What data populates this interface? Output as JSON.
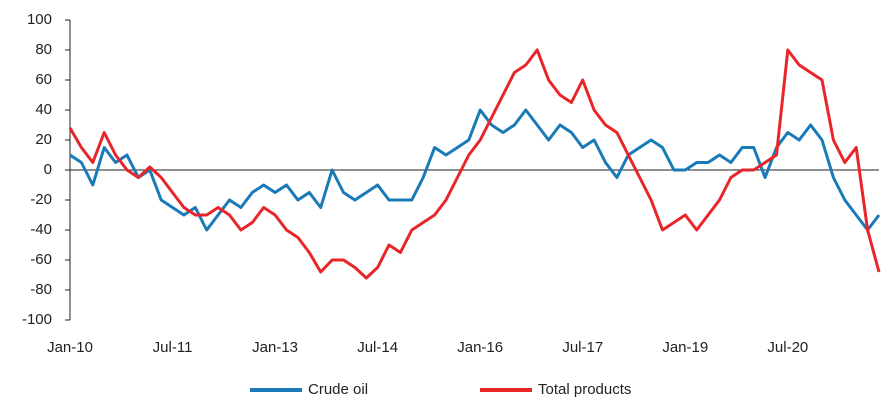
{
  "chart_data": {
    "type": "line",
    "categories": [
      "Jan-10",
      null,
      null,
      null,
      null,
      null,
      null,
      null,
      null,
      "Jul-11",
      null,
      null,
      null,
      null,
      null,
      null,
      null,
      null,
      "Jan-13",
      null,
      null,
      null,
      null,
      null,
      null,
      null,
      null,
      "Jul-14",
      null,
      null,
      null,
      null,
      null,
      null,
      null,
      null,
      "Jan-16",
      null,
      null,
      null,
      null,
      null,
      null,
      null,
      null,
      "Jul-17",
      null,
      null,
      null,
      null,
      null,
      null,
      null,
      null,
      "Jan-19",
      null,
      null,
      null,
      null,
      null,
      null,
      null,
      null,
      "Jul-20",
      null,
      null,
      null,
      null,
      null,
      null,
      null,
      null
    ],
    "series": [
      {
        "name": "Crude oil",
        "color": "#1a7ab8",
        "values": [
          10,
          5,
          -10,
          15,
          5,
          10,
          -5,
          0,
          -20,
          -25,
          -30,
          -25,
          -40,
          -30,
          -20,
          -25,
          -15,
          -10,
          -15,
          -10,
          -20,
          -15,
          -25,
          0,
          -15,
          -20,
          -15,
          -10,
          -20,
          -20,
          -20,
          -5,
          15,
          10,
          15,
          20,
          40,
          30,
          25,
          30,
          40,
          30,
          20,
          30,
          25,
          15,
          20,
          5,
          -5,
          10,
          15,
          20,
          15,
          0,
          0,
          5,
          5,
          10,
          5,
          15,
          15,
          -5,
          15,
          25,
          20,
          30,
          20,
          -5,
          -20,
          -30,
          -40,
          -30
        ]
      },
      {
        "name": "Total products",
        "color": "#e8262a",
        "values": [
          28,
          15,
          5,
          25,
          10,
          0,
          -5,
          2,
          -5,
          -15,
          -25,
          -30,
          -30,
          -25,
          -30,
          -40,
          -35,
          -25,
          -30,
          -40,
          -45,
          -55,
          -68,
          -60,
          -60,
          -65,
          -72,
          -65,
          -50,
          -55,
          -40,
          -35,
          -30,
          -20,
          -5,
          10,
          20,
          35,
          50,
          65,
          70,
          80,
          60,
          50,
          45,
          60,
          40,
          30,
          25,
          10,
          -5,
          -20,
          -40,
          -35,
          -30,
          -40,
          -30,
          -20,
          -5,
          0,
          0,
          5,
          10,
          80,
          70,
          65,
          60,
          20,
          5,
          15,
          -40,
          -68
        ]
      }
    ],
    "ylim": [
      -100,
      100
    ],
    "yticks": [
      -100,
      -80,
      -60,
      -40,
      -20,
      0,
      20,
      40,
      60,
      80,
      100
    ],
    "legend": "bottom"
  }
}
